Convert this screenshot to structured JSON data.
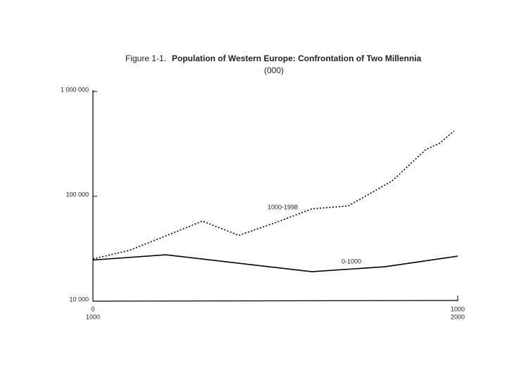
{
  "chart_data": {
    "type": "line",
    "figure_label": "Figure 1-1.",
    "title": "Population of Western Europe: Confrontation of Two Millennia",
    "subtitle": "(000)",
    "log_scale_y": true,
    "ylim": [
      10000,
      1000000
    ],
    "yticks": [
      {
        "value": 10000,
        "label": "10 000"
      },
      {
        "value": 100000,
        "label": "100 000"
      },
      {
        "value": 1000000,
        "label": "1 000 000"
      }
    ],
    "xlim": [
      0,
      1000
    ],
    "xticks": [
      0,
      1000
    ],
    "x2lim": [
      1000,
      2000
    ],
    "x2ticks": [
      1000,
      2000
    ],
    "series": [
      {
        "name": "0-1000",
        "color": "#000000",
        "style": "solid",
        "x": [
          0,
          200,
          600,
          800,
          1000
        ],
        "values": [
          24700,
          27700,
          19100,
          21300,
          26900
        ]
      },
      {
        "name": "1000-1998",
        "color": "#000000",
        "style": "dotted",
        "axis": "x2",
        "x": [
          1000,
          1100,
          1200,
          1300,
          1400,
          1500,
          1600,
          1700,
          1820,
          1913,
          1950,
          1990
        ],
        "values": [
          25300,
          30500,
          42000,
          58000,
          42500,
          56000,
          76000,
          81000,
          140000,
          280000,
          320000,
          420000
        ]
      }
    ]
  }
}
